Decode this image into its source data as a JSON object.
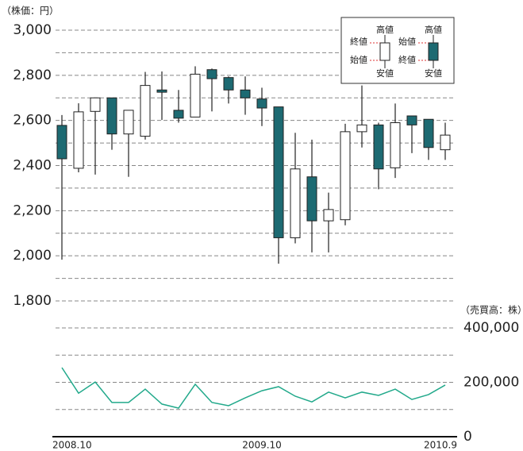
{
  "chart_data": [
    {
      "type": "candlestick",
      "ylabel": "（株価：円）",
      "color": "#1d6a72",
      "ylim": [
        1800,
        3000
      ],
      "yticks": [
        {
          "value": 1800,
          "label": "1,800"
        },
        {
          "value": 2000,
          "label": "2,000"
        },
        {
          "value": 2200,
          "label": "2,200"
        },
        {
          "value": 2400,
          "label": "2,400"
        },
        {
          "value": 2600,
          "label": "2,600"
        },
        {
          "value": 2800,
          "label": "2,800"
        },
        {
          "value": 3000,
          "label": "3,000"
        }
      ],
      "minor_yticks": [
        1900,
        2100,
        2300,
        2500,
        2700,
        2900
      ],
      "grid": true,
      "open": [
        2578,
        2388,
        2640,
        2700,
        2540,
        2530,
        2735,
        2645,
        2615,
        2825,
        2790,
        2735,
        2695,
        2660,
        2080,
        2350,
        2155,
        2160,
        2550,
        2580,
        2390,
        2620,
        2605,
        2470
      ],
      "high": [
        2624,
        2676,
        2700,
        2700,
        2645,
        2815,
        2817,
        2735,
        2840,
        2830,
        2795,
        2795,
        2745,
        2660,
        2545,
        2515,
        2280,
        2585,
        2755,
        2590,
        2675,
        2620,
        2605,
        2590
      ],
      "low": [
        1983,
        2370,
        2360,
        2470,
        2350,
        2515,
        2602,
        2590,
        2615,
        2640,
        2675,
        2625,
        2575,
        1965,
        2055,
        2015,
        2015,
        2135,
        2480,
        2295,
        2345,
        2455,
        2425,
        2425
      ],
      "close": [
        2430,
        2638,
        2700,
        2540,
        2645,
        2755,
        2725,
        2610,
        2805,
        2785,
        2735,
        2700,
        2655,
        2080,
        2385,
        2155,
        2205,
        2550,
        2580,
        2385,
        2590,
        2580,
        2480,
        2535
      ],
      "legend": {
        "up": [
          "高値",
          "終値",
          "始値",
          "安値"
        ],
        "down": [
          "高値",
          "始値",
          "終値",
          "安値"
        ]
      }
    },
    {
      "type": "line",
      "ylabel": "（売買高：株）",
      "color": "#22a98b",
      "categories": [
        "2008.10",
        null,
        null,
        null,
        null,
        null,
        null,
        null,
        null,
        null,
        null,
        null,
        "2009.10",
        null,
        null,
        null,
        null,
        null,
        null,
        null,
        null,
        null,
        null,
        "2010.9"
      ],
      "values": [
        254000,
        160000,
        201000,
        126000,
        126000,
        175000,
        120000,
        105000,
        193000,
        126000,
        114000,
        143000,
        169000,
        184000,
        149000,
        128000,
        164000,
        143000,
        164000,
        152000,
        175000,
        137000,
        155000,
        190000
      ],
      "ylim": [
        0,
        400000
      ],
      "yticks": [
        0,
        {
          "value": 200000,
          "label": "200,000"
        },
        {
          "value": 400000,
          "label": "400,000"
        }
      ],
      "minor_yticks": [
        100000,
        300000
      ],
      "grid": true
    }
  ]
}
